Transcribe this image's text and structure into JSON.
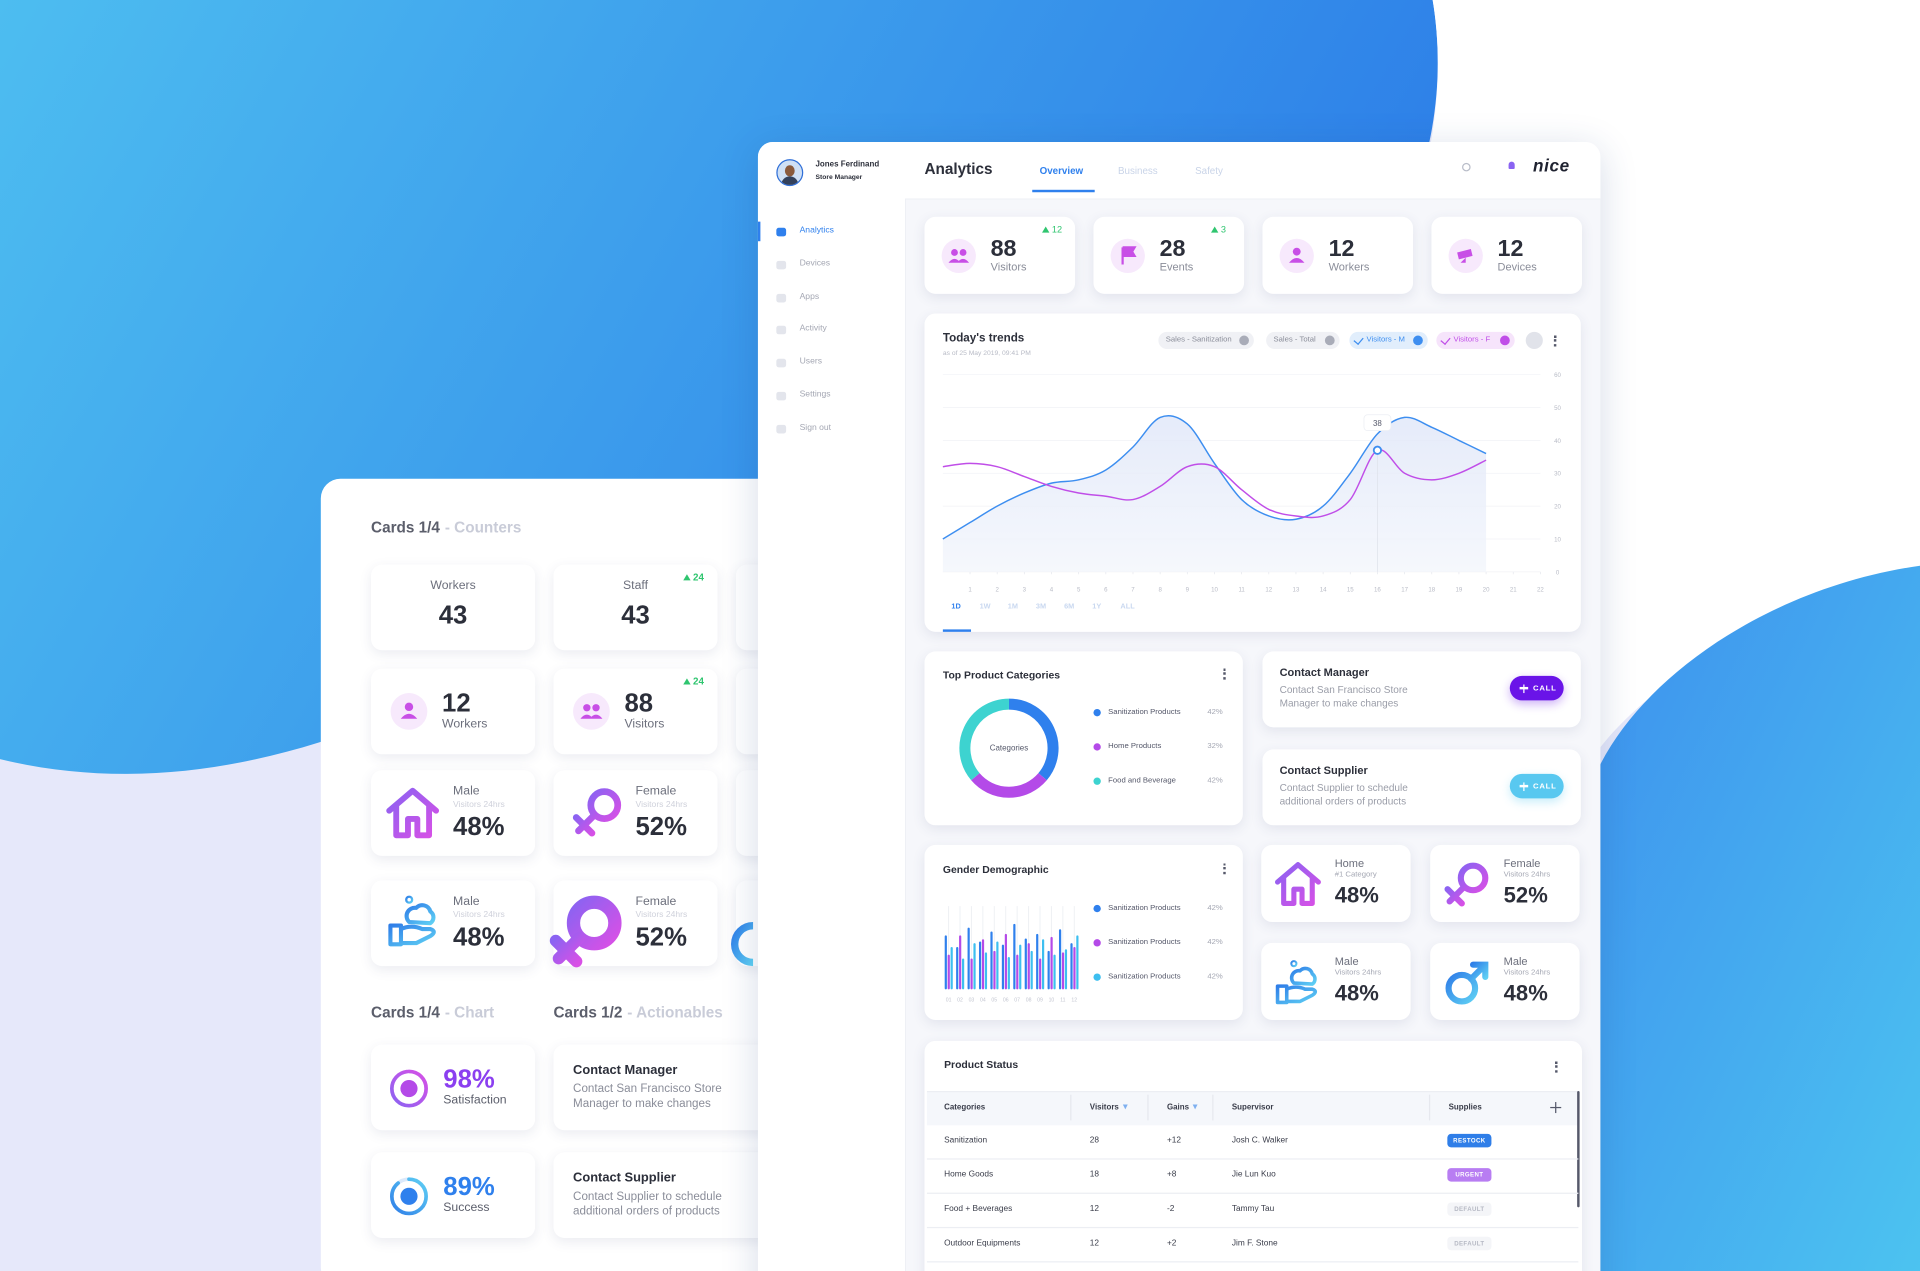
{
  "sidebar": {
    "name": "Jones Ferdinand",
    "role": "Store Manager",
    "menu": [
      "Analytics",
      "Devices",
      "Apps",
      "Activity",
      "Users",
      "Settings",
      "Sign out"
    ]
  },
  "header": {
    "title": "Analytics",
    "tabs": [
      "Overview",
      "Business",
      "Safety"
    ],
    "logo": "nice"
  },
  "stats": [
    {
      "value": 88,
      "label": "Visitors",
      "delta": 12
    },
    {
      "value": 28,
      "label": "Events",
      "delta": 3
    },
    {
      "value": 12,
      "label": "Workers"
    },
    {
      "value": 12,
      "label": "Devices"
    }
  ],
  "showcase": {
    "counters_title": "Cards 1/4",
    "counters_sub": "- Counters",
    "counters": [
      {
        "label": "Workers",
        "value": 43
      },
      {
        "label": "Staff",
        "value": 43,
        "delta": 24
      }
    ],
    "icon_counters": [
      {
        "value": 12,
        "label": "Workers"
      },
      {
        "value": 88,
        "label": "Visitors",
        "delta": 24
      }
    ],
    "percent_cards": [
      {
        "title": "Male",
        "sub": "Visitors 24hrs",
        "value": "48%"
      },
      {
        "title": "Female",
        "sub": "Visitors 24hrs",
        "value": "52%"
      },
      {
        "title": "Male",
        "sub": "Visitors 24hrs",
        "value": "48%"
      },
      {
        "title": "Female",
        "sub": "Visitors 24hrs",
        "value": "52%"
      }
    ],
    "chart_title": "Cards 1/4",
    "chart_sub": "- Chart",
    "rings": [
      {
        "value": 98,
        "label": "98%",
        "caption": "Satisfaction"
      },
      {
        "value": 89,
        "label": "89%",
        "caption": "Success"
      }
    ],
    "action_title": "Cards 1/2",
    "action_sub": "- Actionables",
    "actions": [
      {
        "title": "Contact Manager",
        "text": "Contact San Francisco Store Manager to make changes"
      },
      {
        "title": "Contact Supplier",
        "text": "Contact Supplier to schedule additional orders of products"
      }
    ]
  },
  "contacts": [
    {
      "title": "Contact Manager",
      "text": "Contact San Francisco Store Manager to make changes",
      "button": "CALL"
    },
    {
      "title": "Contact Supplier",
      "text": "Contact Supplier to schedule additional orders of products",
      "button": "CALL"
    }
  ],
  "mini_cards": [
    {
      "title": "Home",
      "sub": "#1 Category",
      "value": "48%"
    },
    {
      "title": "Female",
      "sub": "Visitors 24hrs",
      "value": "52%"
    },
    {
      "title": "Male",
      "sub": "Visitors 24hrs",
      "value": "48%"
    },
    {
      "title": "Male",
      "sub": "Visitors 24hrs",
      "value": "48%"
    }
  ],
  "chart_data": [
    {
      "type": "line",
      "title": "Today's trends",
      "subtitle": "as of 25 May 2019, 09:41 PM",
      "filters": [
        "Sales - Sanitization",
        "Sales - Total"
      ],
      "x": [
        0,
        1,
        2,
        3,
        4,
        5,
        6,
        7,
        8,
        9,
        10,
        11,
        12,
        13,
        14,
        15,
        16,
        17,
        18,
        19,
        20
      ],
      "xlim": [
        0,
        22
      ],
      "xticks": [
        1,
        2,
        3,
        4,
        5,
        6,
        7,
        8,
        9,
        10,
        11,
        12,
        13,
        14,
        15,
        16,
        17,
        18,
        19,
        20,
        21,
        22
      ],
      "ylim": [
        0,
        60
      ],
      "yticks": [
        0,
        10,
        20,
        30,
        40,
        50,
        60
      ],
      "series": [
        {
          "name": "Visitors - M",
          "color": "#3d8ef0",
          "values": [
            10,
            15,
            20,
            24,
            27,
            28,
            31,
            38,
            47,
            45,
            33,
            22,
            17,
            16,
            20,
            30,
            42,
            47,
            44,
            40,
            36
          ]
        },
        {
          "name": "Visitors - F",
          "color": "#c04ee8",
          "values": [
            32,
            33,
            32,
            29,
            26,
            24,
            23,
            22,
            26,
            32,
            32,
            25,
            19,
            17,
            17,
            22,
            37,
            30,
            28,
            30,
            34
          ]
        }
      ],
      "annotation": "38",
      "ranges": [
        "1D",
        "1W",
        "1M",
        "3M",
        "6M",
        "1Y",
        "ALL"
      ]
    },
    {
      "type": "pie",
      "title": "Top Product Categories",
      "center_label": "Categories",
      "categories": [
        "Sanitization Products",
        "Home Products",
        "Food and Beverage"
      ],
      "values": [
        42,
        32,
        42
      ],
      "value_labels": [
        "42%",
        "32%",
        "42%"
      ],
      "colors": [
        "#2f80ed",
        "#b44ae8",
        "#3dd3d0"
      ]
    },
    {
      "type": "bar",
      "title": "Gender Demographic",
      "categories": [
        "01",
        "02",
        "03",
        "04",
        "05",
        "06",
        "07",
        "08",
        "09",
        "10",
        "11",
        "12"
      ],
      "ylim": [
        0,
        100
      ],
      "series": [
        {
          "name": "Sanitization Products",
          "color": "#2f80ed",
          "values": [
            70,
            55,
            80,
            62,
            75,
            58,
            85,
            66,
            72,
            50,
            78,
            60
          ]
        },
        {
          "name": "Sanitization Products",
          "color": "#b44ae8",
          "values": [
            45,
            70,
            40,
            65,
            50,
            72,
            45,
            60,
            40,
            68,
            48,
            55
          ]
        },
        {
          "name": "Sanitization Products",
          "color": "#3dbff0",
          "values": [
            55,
            40,
            60,
            48,
            62,
            42,
            58,
            50,
            65,
            45,
            52,
            70
          ]
        }
      ],
      "legend_labels": [
        "42%",
        "42%",
        "42%"
      ]
    }
  ],
  "table": {
    "title": "Product Status",
    "columns": [
      "Categories",
      "Visitors",
      "Gains",
      "Supervisor",
      "Supplies"
    ],
    "rows": [
      [
        "Sanitization",
        28,
        "+12",
        "Josh C. Walker",
        "RESTOCK"
      ],
      [
        "Home Goods",
        18,
        "+8",
        "Jie Lun Kuo",
        "URGENT"
      ],
      [
        "Food + Beverages",
        12,
        "-2",
        "Tammy Tau",
        "DEFAULT"
      ],
      [
        "Outdoor Equipments",
        12,
        "+2",
        "Jim F. Stone",
        "DEFAULT"
      ]
    ]
  }
}
